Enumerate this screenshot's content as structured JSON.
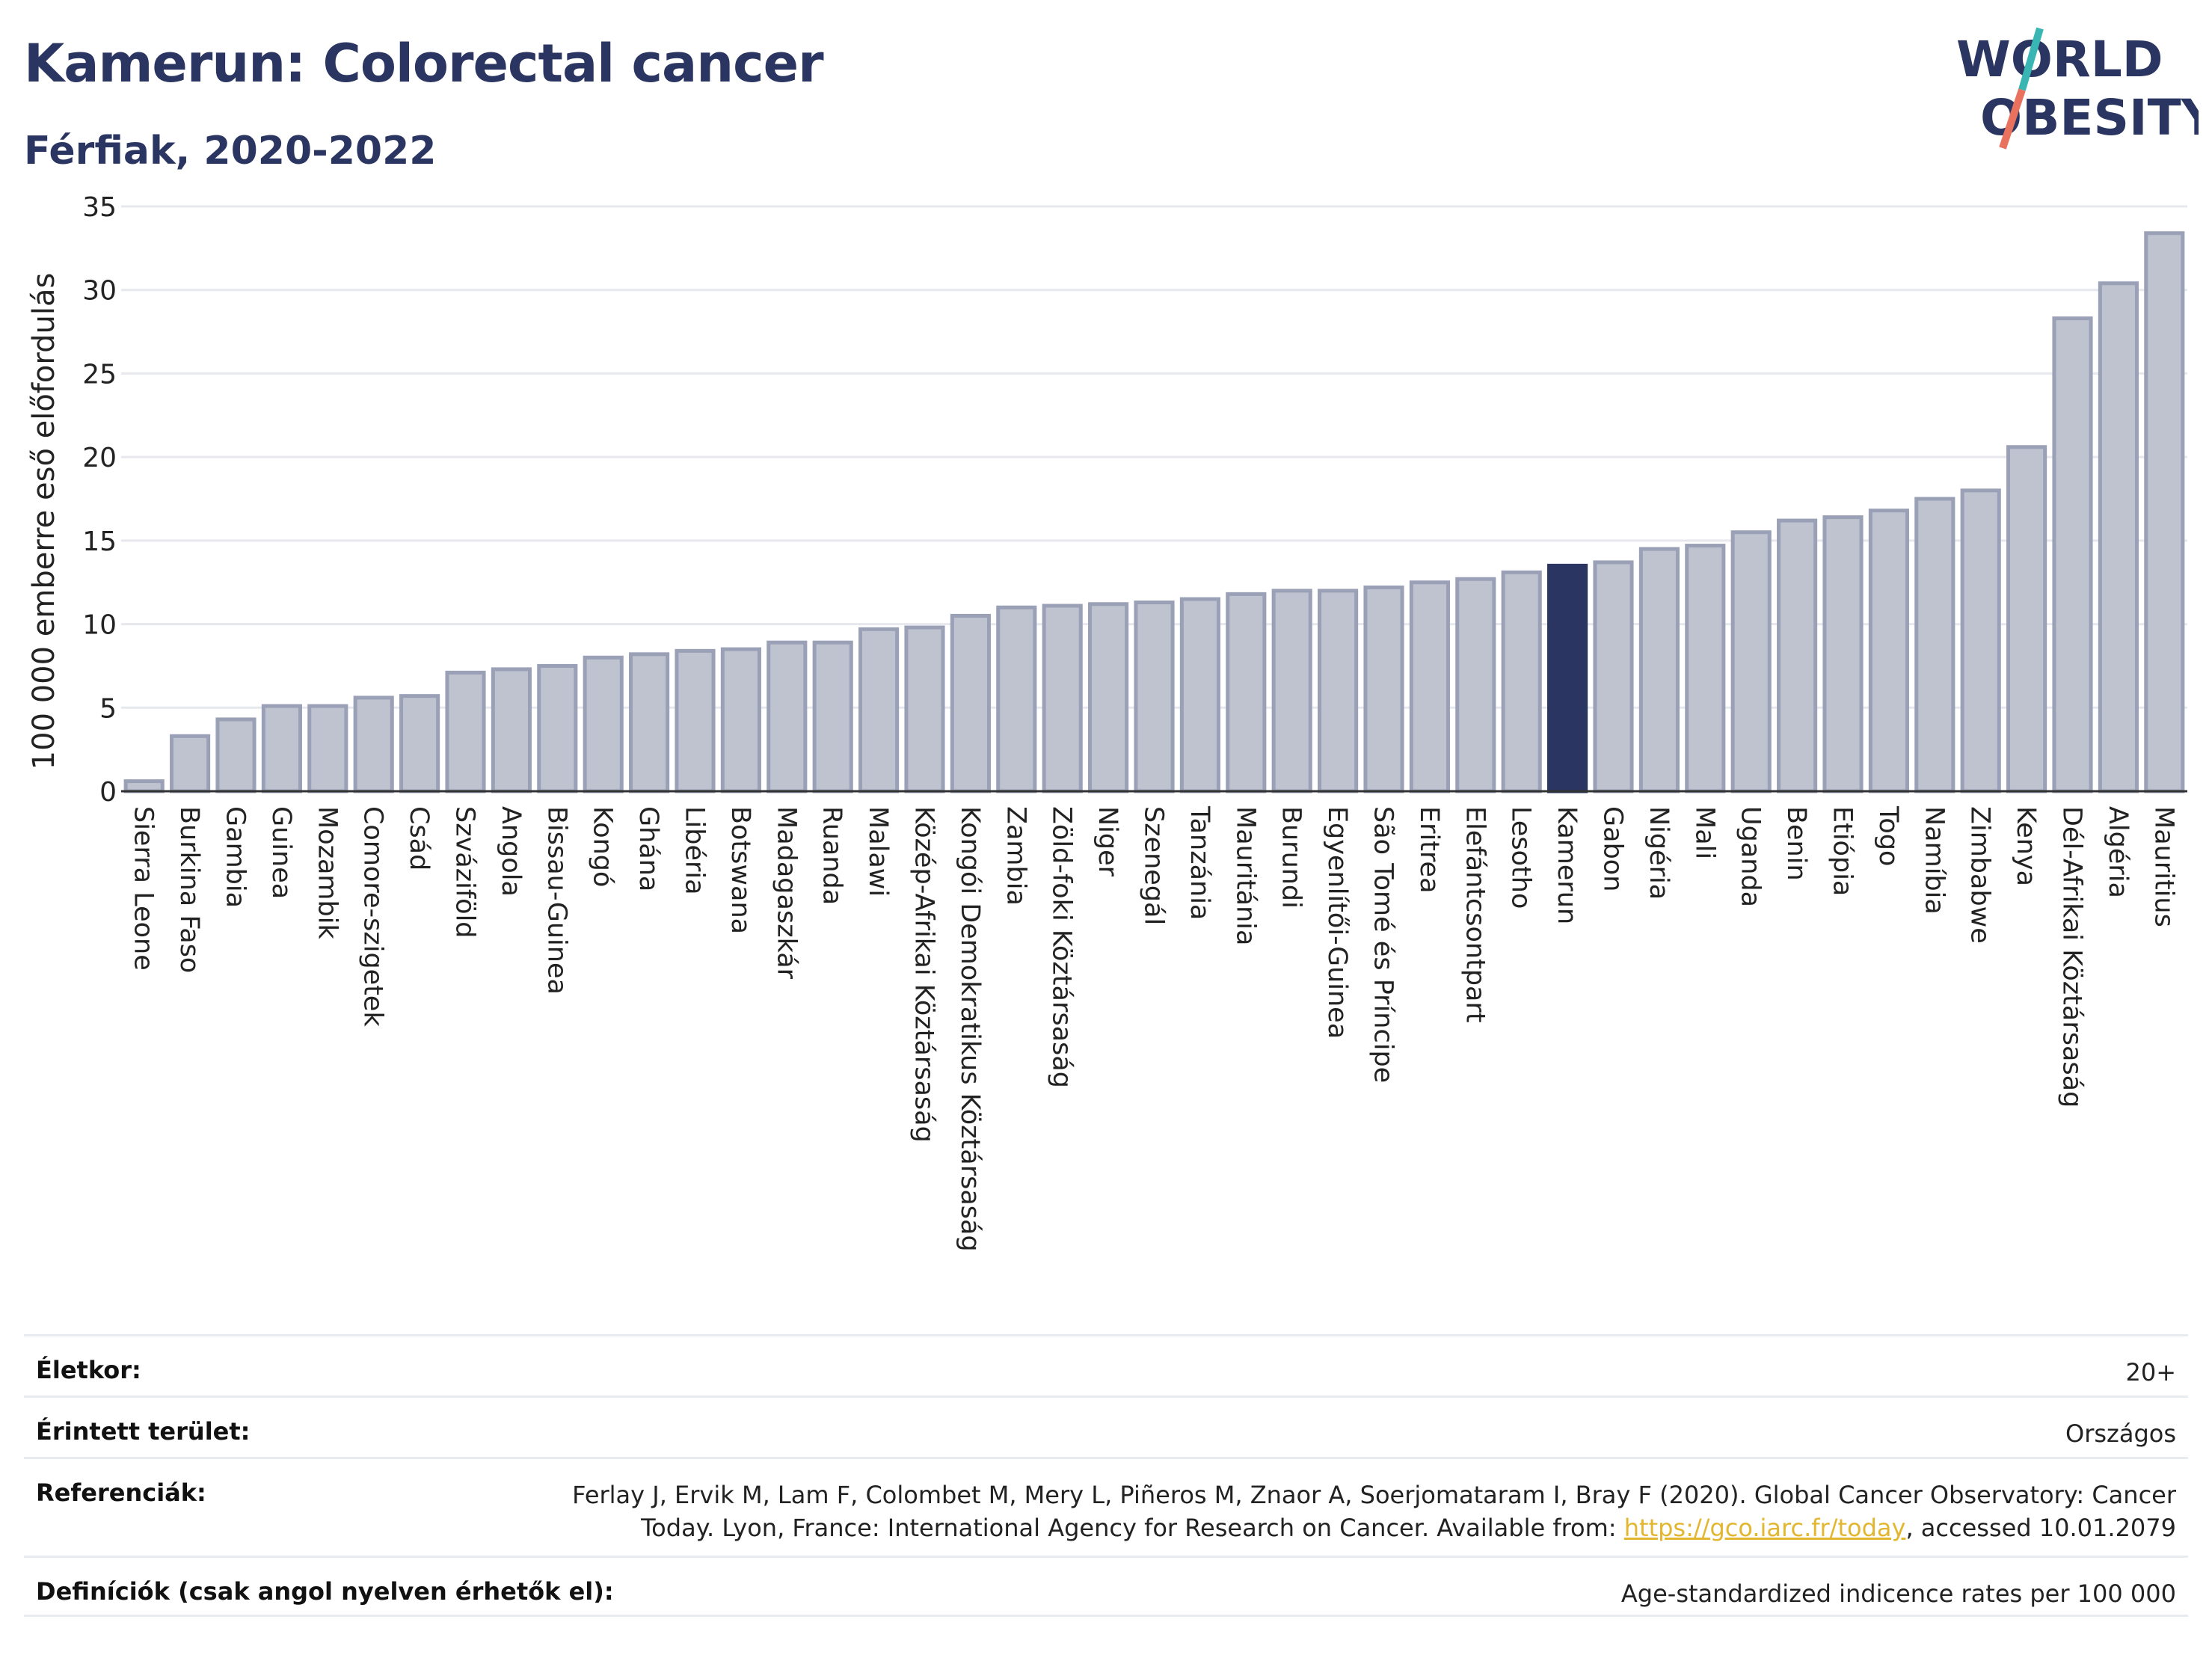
{
  "header": {
    "title": "Kamerun: Colorectal cancer",
    "subtitle": "Férfiak, 2020-2022"
  },
  "logo": {
    "line1": "WORLD",
    "line2": "OBESITY",
    "accent_color": "#e8725d",
    "accent_color2": "#39b6b4"
  },
  "chart_data": {
    "type": "bar",
    "ylabel": "100 000 emberre eső előfordulás",
    "ylim": [
      0,
      35
    ],
    "yticks": [
      0,
      5,
      10,
      15,
      20,
      25,
      30,
      35
    ],
    "grid": true,
    "highlight": "Kamerun",
    "colors": {
      "bar": "#bfc3d0",
      "bar_border": "#9aa0b6",
      "highlight": "#2a3561"
    },
    "categories": [
      "Sierra Leone",
      "Burkina Faso",
      "Gambia",
      "Guinea",
      "Mozambik",
      "Comore-szigetek",
      "Csád",
      "Szváziföld",
      "Angola",
      "Bissau-Guinea",
      "Kongó",
      "Ghána",
      "Libéria",
      "Botswana",
      "Madagaszkár",
      "Ruanda",
      "Malawi",
      "Közép-Afrikai Köztársaság",
      "Kongói Demokratikus Köztársaság",
      "Zambia",
      "Zöld-foki Köztársaság",
      "Niger",
      "Szenegál",
      "Tanzánia",
      "Mauritánia",
      "Burundi",
      "Egyenlítői-Guinea",
      "São Tomé és Príncipe",
      "Eritrea",
      "Elefántcsontpart",
      "Lesotho",
      "Kamerun",
      "Gabon",
      "Nigéria",
      "Mali",
      "Uganda",
      "Benin",
      "Etiópia",
      "Togo",
      "Namíbia",
      "Zimbabwe",
      "Kenya",
      "Dél-Afrikai Köztársaság",
      "Algéria",
      "Mauritius"
    ],
    "values": [
      0.6,
      3.3,
      4.3,
      5.1,
      5.1,
      5.6,
      5.7,
      7.1,
      7.3,
      7.5,
      8.0,
      8.2,
      8.4,
      8.5,
      8.9,
      8.9,
      9.7,
      9.8,
      10.5,
      11.0,
      11.1,
      11.2,
      11.3,
      11.5,
      11.8,
      12.0,
      12.0,
      12.2,
      12.5,
      12.7,
      13.1,
      13.5,
      13.7,
      14.5,
      14.7,
      15.5,
      16.2,
      16.4,
      16.8,
      17.5,
      18.0,
      20.6,
      28.3,
      30.4,
      33.4
    ]
  },
  "info": {
    "age_label": "Életkor:",
    "age_value": "20+",
    "area_label": "Érintett terület:",
    "area_value": "Országos",
    "ref_label": "Referenciák:",
    "ref_line1": "Ferlay J, Ervik M, Lam F, Colombet M, Mery L, Piñeros M, Znaor A, Soerjomataram I, Bray F (2020). Global Cancer Observatory: Cancer",
    "ref_line2_pre": "Today. Lyon, France: International Agency for Research on Cancer. Available from: ",
    "ref_link": "https://gco.iarc.fr/today",
    "ref_line2_post": ", accessed 10.01.2079",
    "def_label": "Definíciók (csak angol nyelven érhetők el):",
    "def_value": "Age-standardized indicence rates per 100 000"
  }
}
